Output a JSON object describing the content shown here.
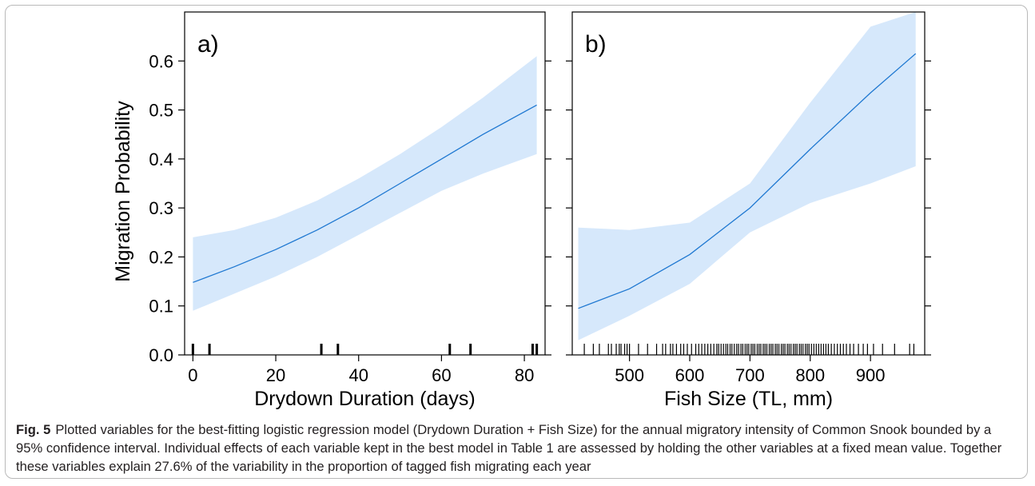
{
  "figure": {
    "label": "Fig. 5",
    "caption": "Plotted variables for the best-fitting logistic regression model (Drydown Duration + Fish Size) for the annual migratory intensity of Common Snook bounded by a 95% confidence interval. Individual effects of each variable kept in the best model in Table 1 are assessed by holding the other variables at a fixed mean value. Together these variables explain 27.6% of the variability in the proportion of tagged fish migrating each year"
  },
  "colors": {
    "line": "#1f78d1",
    "band": "#d6e8fb",
    "axis": "#000000"
  },
  "chart_data": [
    {
      "type": "line",
      "panel_label": "a)",
      "xlabel": "Drydown Duration (days)",
      "ylabel": "Migration Probability",
      "xlim": [
        -2,
        85
      ],
      "ylim": [
        0.0,
        0.7
      ],
      "xticks": [
        0,
        20,
        40,
        60,
        80
      ],
      "yticks": [
        0.0,
        0.1,
        0.2,
        0.3,
        0.4,
        0.5,
        0.6
      ],
      "ytick_labels": [
        "0.0",
        "0.1",
        "0.2",
        "0.3",
        "0.4",
        "0.5",
        "0.6"
      ],
      "x": [
        0,
        10,
        20,
        30,
        40,
        50,
        60,
        70,
        83
      ],
      "y": [
        0.148,
        0.18,
        0.215,
        0.255,
        0.3,
        0.35,
        0.4,
        0.45,
        0.51
      ],
      "ci_lower": [
        0.09,
        0.125,
        0.16,
        0.2,
        0.245,
        0.29,
        0.335,
        0.37,
        0.41
      ],
      "ci_upper": [
        0.24,
        0.255,
        0.28,
        0.315,
        0.36,
        0.41,
        0.465,
        0.525,
        0.61
      ],
      "rug": [
        0,
        4,
        31,
        35,
        62,
        67,
        82,
        83
      ]
    },
    {
      "type": "line",
      "panel_label": "b)",
      "xlabel": "Fish Size (TL, mm)",
      "ylabel": "",
      "xlim": [
        405,
        990
      ],
      "ylim": [
        0.0,
        0.7
      ],
      "xticks": [
        500,
        600,
        700,
        800,
        900
      ],
      "yticks": [
        0.0,
        0.1,
        0.2,
        0.3,
        0.4,
        0.5,
        0.6
      ],
      "x": [
        415,
        500,
        600,
        700,
        800,
        900,
        975
      ],
      "y": [
        0.095,
        0.135,
        0.205,
        0.3,
        0.42,
        0.535,
        0.615
      ],
      "ci_lower": [
        0.03,
        0.08,
        0.145,
        0.25,
        0.31,
        0.35,
        0.385
      ],
      "ci_upper": [
        0.26,
        0.255,
        0.27,
        0.35,
        0.515,
        0.67,
        0.7
      ],
      "rug": [
        425,
        440,
        450,
        465,
        470,
        478,
        483,
        486,
        492,
        496,
        500,
        515,
        530,
        545,
        555,
        560,
        568,
        572,
        578,
        585,
        590,
        596,
        603,
        610,
        615,
        620,
        625,
        630,
        635,
        640,
        645,
        648,
        652,
        656,
        660,
        663,
        667,
        670,
        674,
        678,
        681,
        685,
        688,
        692,
        695,
        698,
        702,
        705,
        708,
        712,
        715,
        718,
        722,
        725,
        728,
        732,
        735,
        738,
        742,
        745,
        748,
        752,
        755,
        758,
        762,
        765,
        768,
        772,
        775,
        778,
        782,
        785,
        788,
        792,
        795,
        798,
        802,
        806,
        810,
        814,
        818,
        822,
        826,
        830,
        835,
        840,
        845,
        850,
        855,
        860,
        866,
        872,
        880,
        888,
        895,
        905,
        920,
        940,
        965,
        972
      ]
    }
  ]
}
